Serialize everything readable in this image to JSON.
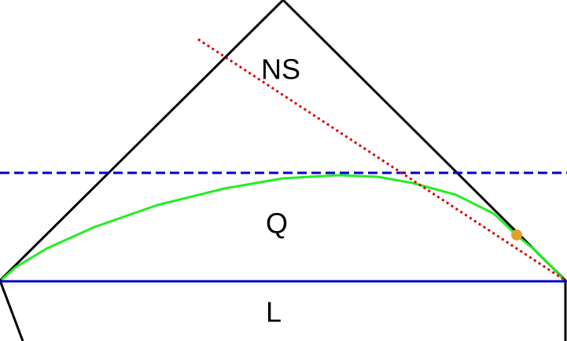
{
  "labels": {
    "top": "NS",
    "middle": "Q",
    "bottom": "L"
  },
  "colors": {
    "outline": "#000000",
    "blue_line": "#0000cc",
    "red_line": "#dd0000",
    "green_curve": "#22ee22",
    "point": "#e0a030"
  }
}
